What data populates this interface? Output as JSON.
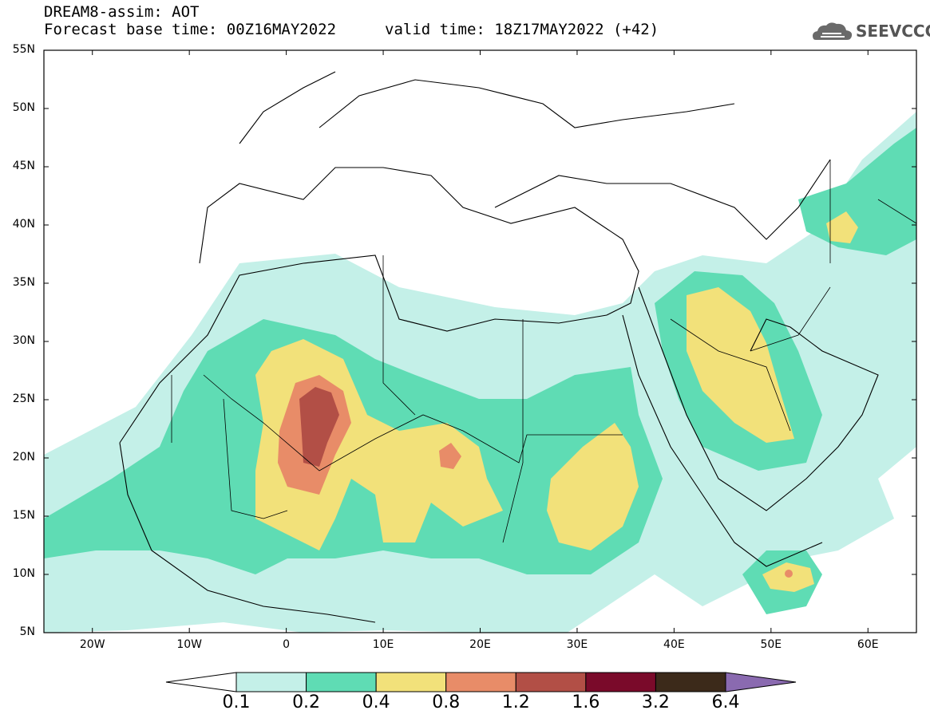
{
  "header": {
    "line1": "DREAM8-assim: AOT",
    "base_time": "Forecast base time: 00Z16MAY2022",
    "valid_time": "valid time: 18Z17MAY2022 (+42)"
  },
  "logo": {
    "text": "SEEVCCC",
    "icon": "cloud-icon"
  },
  "axes": {
    "lat_labels": [
      "55N",
      "50N",
      "45N",
      "40N",
      "35N",
      "30N",
      "25N",
      "20N",
      "15N",
      "10N",
      "5N"
    ],
    "lat_values": [
      55,
      50,
      45,
      40,
      35,
      30,
      25,
      20,
      15,
      10,
      5
    ],
    "lon_labels": [
      "20W",
      "10W",
      "0",
      "10E",
      "20E",
      "30E",
      "40E",
      "50E",
      "60E"
    ],
    "lon_values": [
      -20,
      -10,
      0,
      10,
      20,
      30,
      40,
      50,
      60
    ],
    "lon_range": [
      -25,
      65
    ],
    "lat_range": [
      5,
      55
    ]
  },
  "colorbar": {
    "labels": [
      "0.1",
      "0.2",
      "0.4",
      "0.8",
      "1.2",
      "1.6",
      "3.2",
      "6.4"
    ],
    "colors": [
      "#ffffff",
      "#c4f0e8",
      "#5fdcb4",
      "#f2e17a",
      "#e88c68",
      "#b24f46",
      "#7a0a2a",
      "#3c2a1a",
      "#8a6ab0"
    ]
  },
  "map": {
    "variable": "AOT",
    "levels": [
      0.1,
      0.2,
      0.4,
      0.8,
      1.2,
      1.6,
      3.2,
      6.4
    ]
  }
}
